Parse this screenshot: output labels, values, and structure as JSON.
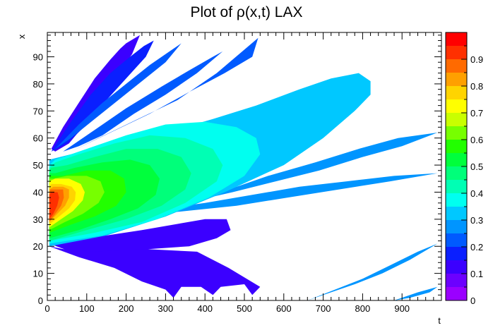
{
  "chart_data": {
    "type": "heatmap",
    "title": "Plot of ρ(x,t) LAX",
    "xlabel": "t",
    "ylabel": "x",
    "xlim": [
      0,
      1000
    ],
    "ylim": [
      0,
      99
    ],
    "x_ticks": [
      "0",
      "100",
      "200",
      "300",
      "400",
      "500",
      "600",
      "700",
      "800",
      "900"
    ],
    "y_ticks": [
      "0",
      "10",
      "20",
      "30",
      "40",
      "50",
      "60",
      "70",
      "80",
      "90"
    ],
    "colorbar": {
      "range": [
        0,
        1
      ],
      "tick_labels": [
        "0",
        "0.1",
        "0.2",
        "0.3",
        "0.4",
        "0.5",
        "0.6",
        "0.7",
        "0.8",
        "0.9"
      ],
      "levels": [
        0,
        0.05,
        0.1,
        0.15,
        0.2,
        0.25,
        0.3,
        0.35,
        0.4,
        0.45,
        0.5,
        0.55,
        0.6,
        0.65,
        0.7,
        0.75,
        0.8,
        0.85,
        0.9,
        0.95
      ],
      "colors": [
        "#9a00ff",
        "#6c00ff",
        "#3b00ff",
        "#0a1fff",
        "#005aff",
        "#0095ff",
        "#00c8ff",
        "#00fff0",
        "#00ffb4",
        "#00ff7a",
        "#00ff3c",
        "#22ff00",
        "#77ff00",
        "#c9ff00",
        "#ffff00",
        "#ffd400",
        "#ffa000",
        "#ff6a00",
        "#ff3000",
        "#ff0000"
      ]
    },
    "regions": [
      {
        "level": 0.1,
        "label": "lower-wedge",
        "points": [
          [
            5,
            21
          ],
          [
            60,
            18
          ],
          [
            160,
            17
          ],
          [
            260,
            19
          ],
          [
            360,
            20
          ],
          [
            430,
            23
          ],
          [
            465,
            26
          ],
          [
            455,
            30
          ],
          [
            400,
            30
          ],
          [
            320,
            28
          ],
          [
            240,
            26
          ],
          [
            150,
            24
          ],
          [
            80,
            23
          ],
          [
            20,
            22
          ]
        ]
      },
      {
        "level": 0.1,
        "label": "lower-wedge-tail",
        "points": [
          [
            5,
            20
          ],
          [
            80,
            16
          ],
          [
            170,
            12
          ],
          [
            240,
            7
          ],
          [
            300,
            4
          ],
          [
            320,
            1
          ],
          [
            340,
            5
          ],
          [
            390,
            5
          ],
          [
            420,
            2
          ],
          [
            440,
            5
          ],
          [
            500,
            6
          ],
          [
            520,
            2
          ],
          [
            540,
            5
          ],
          [
            460,
            12
          ],
          [
            380,
            18
          ],
          [
            250,
            19
          ],
          [
            120,
            18
          ],
          [
            40,
            19
          ]
        ]
      },
      {
        "level": 0.1,
        "label": "upper-ray-1",
        "points": [
          [
            10,
            56
          ],
          [
            40,
            64
          ],
          [
            80,
            73
          ],
          [
            120,
            82
          ],
          [
            160,
            89
          ],
          [
            185,
            93
          ],
          [
            200,
            95
          ],
          [
            235,
            98
          ],
          [
            215,
            91
          ],
          [
            175,
            83
          ],
          [
            135,
            74
          ],
          [
            95,
            65
          ],
          [
            55,
            58
          ],
          [
            20,
            55
          ]
        ]
      },
      {
        "level": 0.15,
        "label": "upper-ray-2",
        "points": [
          [
            10,
            55
          ],
          [
            60,
            66
          ],
          [
            110,
            76
          ],
          [
            160,
            84
          ],
          [
            210,
            90
          ],
          [
            245,
            94
          ],
          [
            270,
            96
          ],
          [
            250,
            90
          ],
          [
            200,
            82
          ],
          [
            150,
            74
          ],
          [
            100,
            65
          ],
          [
            50,
            58
          ]
        ]
      },
      {
        "level": 0.2,
        "label": "upper-ray-3",
        "points": [
          [
            20,
            56
          ],
          [
            80,
            65
          ],
          [
            140,
            73
          ],
          [
            200,
            80
          ],
          [
            260,
            87
          ],
          [
            310,
            92
          ],
          [
            340,
            95
          ],
          [
            300,
            88
          ],
          [
            240,
            81
          ],
          [
            180,
            74
          ],
          [
            120,
            67
          ],
          [
            60,
            60
          ]
        ]
      },
      {
        "level": 0.2,
        "label": "upper-ray-4",
        "points": [
          [
            40,
            55
          ],
          [
            120,
            63
          ],
          [
            200,
            71
          ],
          [
            290,
            79
          ],
          [
            360,
            85
          ],
          [
            420,
            90
          ],
          [
            445,
            92
          ],
          [
            380,
            84
          ],
          [
            300,
            76
          ],
          [
            220,
            69
          ],
          [
            140,
            61
          ],
          [
            80,
            57
          ]
        ]
      },
      {
        "level": 0.2,
        "label": "upper-ray-5",
        "points": [
          [
            60,
            55
          ],
          [
            160,
            62
          ],
          [
            260,
            69
          ],
          [
            360,
            77
          ],
          [
            450,
            84
          ],
          [
            520,
            90
          ],
          [
            535,
            97
          ],
          [
            430,
            84
          ],
          [
            330,
            74
          ],
          [
            230,
            67
          ],
          [
            130,
            60
          ]
        ]
      },
      {
        "level": 0.25,
        "label": "lower-band-1",
        "points": [
          [
            10,
            27
          ],
          [
            100,
            28
          ],
          [
            200,
            31
          ],
          [
            320,
            35
          ],
          [
            440,
            40
          ],
          [
            560,
            46
          ],
          [
            680,
            51
          ],
          [
            790,
            56
          ],
          [
            890,
            60
          ],
          [
            990,
            62
          ],
          [
            900,
            57
          ],
          [
            800,
            53
          ],
          [
            690,
            48
          ],
          [
            580,
            44
          ],
          [
            470,
            40
          ],
          [
            350,
            36
          ],
          [
            230,
            32
          ],
          [
            120,
            29
          ],
          [
            30,
            27
          ]
        ]
      },
      {
        "level": 0.25,
        "label": "lower-band-2",
        "points": [
          [
            100,
            30
          ],
          [
            250,
            33
          ],
          [
            400,
            36
          ],
          [
            520,
            39
          ],
          [
            640,
            42
          ],
          [
            760,
            44
          ],
          [
            880,
            46
          ],
          [
            990,
            47
          ],
          [
            870,
            44
          ],
          [
            740,
            41
          ],
          [
            610,
            38
          ],
          [
            480,
            35
          ],
          [
            350,
            33
          ],
          [
            210,
            31
          ]
        ]
      },
      {
        "level": 0.25,
        "label": "bottom-ray-1",
        "points": [
          [
            660,
            0
          ],
          [
            730,
            4
          ],
          [
            800,
            8
          ],
          [
            870,
            13
          ],
          [
            940,
            18
          ],
          [
            990,
            21
          ],
          [
            920,
            15
          ],
          [
            850,
            10
          ],
          [
            780,
            6
          ],
          [
            700,
            2
          ]
        ]
      },
      {
        "level": 0.25,
        "label": "bottom-ray-2",
        "points": [
          [
            880,
            0
          ],
          [
            940,
            3
          ],
          [
            990,
            5
          ],
          [
            970,
            3
          ],
          [
            920,
            1
          ]
        ]
      },
      {
        "level": 0.3,
        "label": "c03",
        "points": [
          [
            5,
            20
          ],
          [
            150,
            24
          ],
          [
            300,
            31
          ],
          [
            450,
            40
          ],
          [
            600,
            50
          ],
          [
            700,
            60
          ],
          [
            780,
            70
          ],
          [
            820,
            76
          ],
          [
            820,
            81
          ],
          [
            790,
            84
          ],
          [
            720,
            82
          ],
          [
            640,
            78
          ],
          [
            530,
            72
          ],
          [
            420,
            67
          ],
          [
            300,
            62
          ],
          [
            180,
            58
          ],
          [
            60,
            54
          ],
          [
            5,
            52
          ]
        ]
      },
      {
        "level": 0.35,
        "label": "c035",
        "points": [
          [
            5,
            21
          ],
          [
            140,
            24
          ],
          [
            280,
            30
          ],
          [
            410,
            38
          ],
          [
            500,
            46
          ],
          [
            540,
            54
          ],
          [
            530,
            60
          ],
          [
            480,
            64
          ],
          [
            400,
            66
          ],
          [
            300,
            65
          ],
          [
            200,
            61
          ],
          [
            100,
            56
          ],
          [
            20,
            52
          ],
          [
            5,
            50
          ]
        ]
      },
      {
        "level": 0.4,
        "label": "c04",
        "points": [
          [
            5,
            22
          ],
          [
            120,
            25
          ],
          [
            240,
            29
          ],
          [
            350,
            36
          ],
          [
            430,
            44
          ],
          [
            445,
            50
          ],
          [
            420,
            56
          ],
          [
            350,
            60
          ],
          [
            260,
            61
          ],
          [
            170,
            58
          ],
          [
            80,
            54
          ],
          [
            20,
            51
          ],
          [
            5,
            49
          ]
        ]
      },
      {
        "level": 0.45,
        "label": "c045",
        "points": [
          [
            5,
            22
          ],
          [
            100,
            26
          ],
          [
            200,
            30
          ],
          [
            290,
            35
          ],
          [
            350,
            41
          ],
          [
            365,
            47
          ],
          [
            340,
            53
          ],
          [
            280,
            56
          ],
          [
            200,
            56
          ],
          [
            120,
            53
          ],
          [
            50,
            50
          ],
          [
            10,
            49
          ],
          [
            5,
            48
          ]
        ]
      },
      {
        "level": 0.5,
        "label": "c05",
        "points": [
          [
            5,
            23
          ],
          [
            80,
            26
          ],
          [
            160,
            30
          ],
          [
            230,
            34
          ],
          [
            275,
            39
          ],
          [
            285,
            45
          ],
          [
            260,
            50
          ],
          [
            210,
            52
          ],
          [
            140,
            51
          ],
          [
            70,
            49
          ],
          [
            20,
            47
          ],
          [
            5,
            47
          ]
        ]
      },
      {
        "level": 0.55,
        "label": "c055",
        "points": [
          [
            5,
            25
          ],
          [
            60,
            28
          ],
          [
            120,
            31
          ],
          [
            175,
            35
          ],
          [
            200,
            40
          ],
          [
            195,
            45
          ],
          [
            160,
            48
          ],
          [
            100,
            48
          ],
          [
            40,
            46
          ],
          [
            5,
            46
          ]
        ]
      },
      {
        "level": 0.6,
        "label": "c06",
        "points": [
          [
            5,
            26
          ],
          [
            45,
            29
          ],
          [
            90,
            32
          ],
          [
            130,
            36
          ],
          [
            145,
            40
          ],
          [
            135,
            44
          ],
          [
            100,
            46
          ],
          [
            50,
            46
          ],
          [
            15,
            45
          ],
          [
            5,
            45
          ]
        ]
      },
      {
        "level": 0.7,
        "label": "c07",
        "points": [
          [
            5,
            27
          ],
          [
            35,
            30
          ],
          [
            65,
            33
          ],
          [
            90,
            37
          ],
          [
            95,
            40
          ],
          [
            85,
            43
          ],
          [
            55,
            45
          ],
          [
            20,
            45
          ],
          [
            5,
            44
          ]
        ]
      },
      {
        "level": 0.75,
        "label": "c075",
        "points": [
          [
            5,
            28
          ],
          [
            30,
            31
          ],
          [
            55,
            34
          ],
          [
            70,
            37
          ],
          [
            72,
            40
          ],
          [
            62,
            42
          ],
          [
            35,
            43
          ],
          [
            10,
            43
          ],
          [
            5,
            42
          ]
        ]
      },
      {
        "level": 0.8,
        "label": "c08",
        "points": [
          [
            5,
            29
          ],
          [
            25,
            32
          ],
          [
            45,
            35
          ],
          [
            55,
            38
          ],
          [
            55,
            41
          ],
          [
            40,
            42
          ],
          [
            15,
            42
          ],
          [
            5,
            41
          ]
        ]
      },
      {
        "level": 0.85,
        "label": "c085",
        "points": [
          [
            5,
            29
          ],
          [
            20,
            32
          ],
          [
            35,
            35
          ],
          [
            42,
            38
          ],
          [
            40,
            41
          ],
          [
            25,
            41
          ],
          [
            8,
            41
          ],
          [
            5,
            40
          ]
        ]
      },
      {
        "level": 0.9,
        "label": "c09",
        "points": [
          [
            5,
            30
          ],
          [
            15,
            32
          ],
          [
            25,
            35
          ],
          [
            30,
            38
          ],
          [
            26,
            40
          ],
          [
            10,
            40
          ],
          [
            5,
            39
          ]
        ]
      }
    ]
  }
}
